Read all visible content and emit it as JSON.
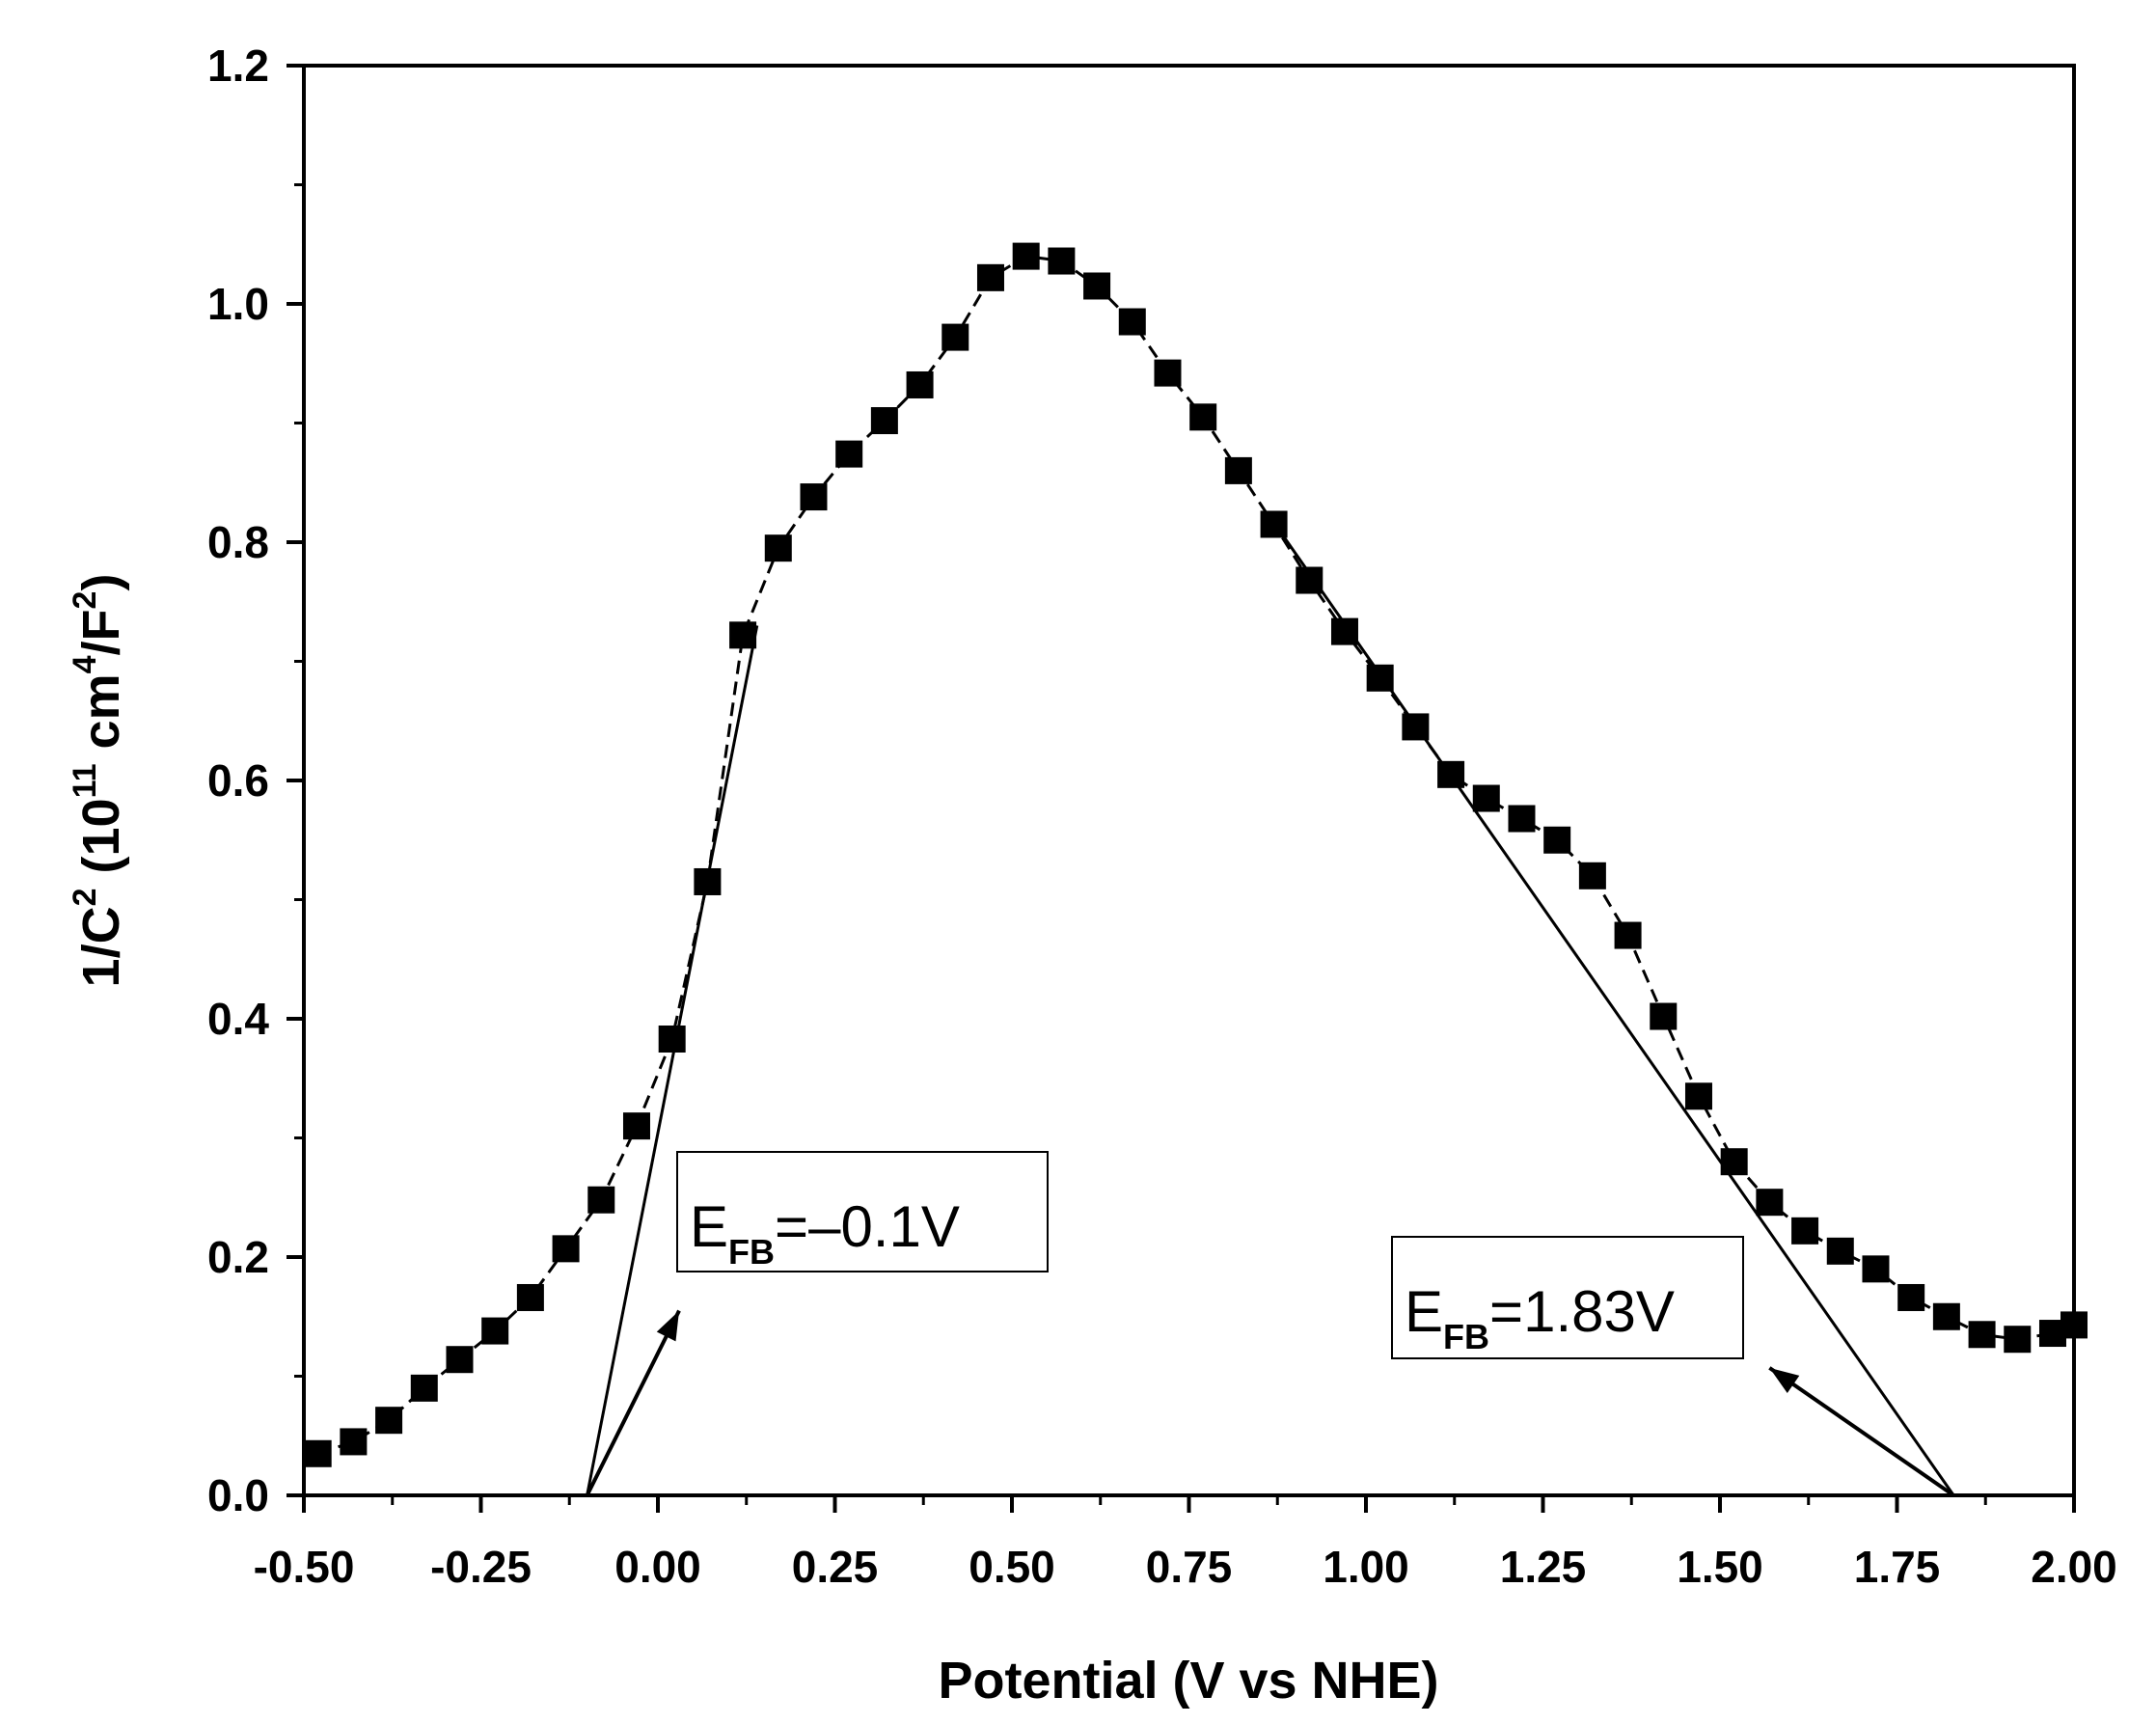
{
  "chart_data": {
    "type": "scatter",
    "title": "",
    "xlabel": "Potential (V vs NHE)",
    "ylabel": {
      "base": "1/C",
      "exp": "2",
      "unit_open": " (10",
      "unit_exp1": "11",
      "unit_mid": " cm",
      "unit_exp2": "4",
      "unit_slash": "/F",
      "unit_exp3": "2",
      "unit_close": ")"
    },
    "xlim": [
      -0.5,
      2.0
    ],
    "ylim": [
      0.0,
      1.2
    ],
    "xticks": [
      "-0.50",
      "-0.25",
      "0.00",
      "0.25",
      "0.50",
      "0.75",
      "1.00",
      "1.25",
      "1.50",
      "1.75",
      "2.00"
    ],
    "yticks": [
      "0.0",
      "0.2",
      "0.4",
      "0.6",
      "0.8",
      "1.0",
      "1.2"
    ],
    "series": [
      {
        "name": "1/C^2",
        "marker": "square",
        "color": "#000000",
        "connected": "dashed",
        "x": [
          -0.48,
          -0.43,
          -0.38,
          -0.33,
          -0.28,
          -0.23,
          -0.18,
          -0.13,
          -0.08,
          -0.03,
          0.02,
          0.07,
          0.12,
          0.17,
          0.22,
          0.27,
          0.32,
          0.37,
          0.42,
          0.47,
          0.52,
          0.57,
          0.62,
          0.67,
          0.72,
          0.77,
          0.82,
          0.87,
          0.92,
          0.97,
          1.02,
          1.07,
          1.12,
          1.17,
          1.22,
          1.27,
          1.32,
          1.37,
          1.42,
          1.47,
          1.52,
          1.57,
          1.62,
          1.67,
          1.72,
          1.77,
          1.82,
          1.87,
          1.92,
          1.97,
          2.0
        ],
        "y": [
          0.035,
          0.045,
          0.063,
          0.09,
          0.114,
          0.138,
          0.166,
          0.207,
          0.248,
          0.31,
          0.383,
          0.515,
          0.722,
          0.795,
          0.838,
          0.874,
          0.902,
          0.932,
          0.972,
          1.022,
          1.04,
          1.036,
          1.015,
          0.985,
          0.942,
          0.905,
          0.86,
          0.815,
          0.768,
          0.725,
          0.686,
          0.645,
          0.605,
          0.585,
          0.568,
          0.55,
          0.52,
          0.47,
          0.402,
          0.335,
          0.28,
          0.246,
          0.222,
          0.205,
          0.19,
          0.166,
          0.15,
          0.135,
          0.131,
          0.136,
          0.143
        ]
      }
    ],
    "fit_lines": [
      {
        "name": "linear fit low",
        "x": [
          -0.1,
          0.14
        ],
        "y": [
          0.0,
          0.73
        ]
      },
      {
        "name": "linear fit high",
        "x": [
          0.86,
          1.83
        ],
        "y": [
          0.825,
          0.0
        ]
      }
    ],
    "annotations": [
      {
        "name": "efb-low",
        "main": "E",
        "sub": "FB",
        "value": "=–0.1V",
        "arrow_from": [
          -0.1,
          0.0
        ],
        "arrow_to": [
          0.03,
          0.155
        ]
      },
      {
        "name": "efb-high",
        "main": "E",
        "sub": "FB",
        "value": "=1.83V",
        "arrow_from": [
          1.83,
          0.0
        ],
        "arrow_to": [
          1.57,
          0.107
        ]
      }
    ],
    "grid": false,
    "legend": "none"
  }
}
